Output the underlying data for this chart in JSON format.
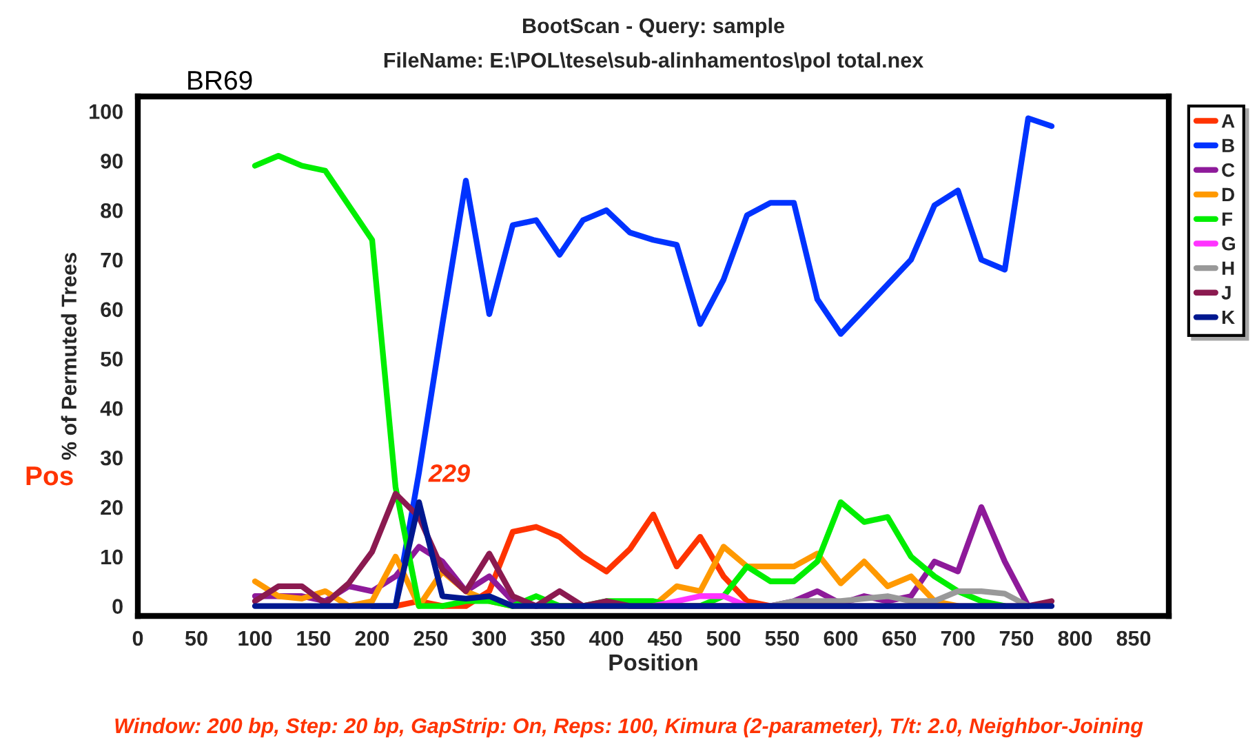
{
  "chart_data": {
    "type": "line",
    "title": "BootScan - Query: sample",
    "subtitle": "FileName: E:\\POL\\tese\\sub-alinhamentos\\pol total.nex",
    "xlabel": "Position",
    "ylabel": "% of Permuted Trees",
    "x": [
      100,
      120,
      140,
      160,
      180,
      200,
      220,
      240,
      260,
      280,
      300,
      320,
      340,
      360,
      380,
      400,
      420,
      440,
      460,
      480,
      500,
      520,
      540,
      560,
      580,
      600,
      620,
      640,
      660,
      680,
      700,
      720,
      740,
      760,
      780
    ],
    "series": [
      {
        "name": "A",
        "color": "#ff3300",
        "values": [
          null,
          null,
          null,
          null,
          null,
          null,
          0,
          1,
          0,
          0,
          3,
          15,
          16,
          14,
          10,
          7,
          11.5,
          18.5,
          8,
          14,
          6,
          1,
          0,
          null,
          null,
          null,
          null,
          null,
          null,
          null,
          null,
          null,
          null,
          null,
          null
        ]
      },
      {
        "name": "B",
        "color": "#0033ff",
        "values": [
          null,
          null,
          null,
          null,
          null,
          0,
          0,
          27,
          57,
          86,
          59,
          77,
          78,
          71,
          78,
          80,
          75.5,
          74,
          73,
          57,
          66,
          79,
          81.5,
          81.5,
          62,
          55,
          60,
          65,
          70,
          81,
          84,
          70,
          68,
          98.6,
          97
        ]
      },
      {
        "name": "C",
        "color": "#8e1a9a",
        "values": [
          2,
          2,
          2,
          1,
          4,
          3,
          6,
          12,
          9,
          3,
          6,
          1,
          0,
          null,
          null,
          null,
          null,
          null,
          null,
          null,
          null,
          null,
          0,
          1,
          3,
          0.5,
          2,
          1,
          2,
          9,
          7,
          20,
          9,
          0,
          null
        ]
      },
      {
        "name": "D",
        "color": "#ff9900",
        "values": [
          5,
          2,
          1.5,
          3,
          0,
          1,
          10,
          0,
          7,
          3,
          1,
          0,
          null,
          null,
          null,
          null,
          null,
          0,
          4,
          3,
          12,
          8,
          8,
          8,
          10.6,
          4.6,
          9,
          4,
          6,
          1,
          0,
          null,
          null,
          null,
          null
        ]
      },
      {
        "name": "F",
        "color": "#00ee00",
        "values": [
          89,
          91,
          89,
          88,
          81,
          74,
          24,
          0,
          0,
          1,
          1,
          0,
          2,
          0,
          0,
          1,
          1,
          1,
          0,
          0,
          2,
          8,
          5,
          5,
          9,
          21,
          17,
          18,
          10,
          6,
          3,
          1,
          0,
          null,
          null
        ]
      },
      {
        "name": "G",
        "color": "#ff33ff",
        "values": [
          null,
          null,
          null,
          null,
          null,
          null,
          null,
          null,
          null,
          null,
          null,
          null,
          null,
          null,
          null,
          null,
          null,
          0,
          1,
          2,
          2,
          0,
          null,
          null,
          null,
          null,
          null,
          null,
          null,
          null,
          null,
          null,
          null,
          null,
          null
        ]
      },
      {
        "name": "H",
        "color": "#999999",
        "values": [
          null,
          null,
          null,
          null,
          null,
          null,
          null,
          null,
          null,
          null,
          null,
          null,
          null,
          null,
          null,
          null,
          null,
          null,
          null,
          null,
          null,
          null,
          0,
          1,
          1,
          1,
          1.5,
          2,
          1,
          1,
          3,
          3,
          2.5,
          0,
          null
        ]
      },
      {
        "name": "J",
        "color": "#8b1a50",
        "values": [
          1,
          4,
          4,
          0.5,
          4.6,
          11,
          22.7,
          18,
          7.4,
          3,
          10.6,
          2,
          0,
          3,
          0,
          1,
          0,
          null,
          null,
          null,
          null,
          null,
          null,
          null,
          null,
          null,
          null,
          null,
          null,
          null,
          null,
          null,
          null,
          0,
          1
        ]
      },
      {
        "name": "K",
        "color": "#00188f",
        "values": [
          0,
          0,
          0,
          0,
          0,
          0,
          0,
          21,
          2,
          1.5,
          2,
          0,
          0,
          0,
          0,
          0,
          0,
          0,
          0,
          0,
          0,
          0,
          0,
          0,
          0,
          0,
          0,
          0,
          0,
          0,
          0,
          0,
          0,
          0,
          0
        ]
      }
    ],
    "xlim": [
      0,
      880
    ],
    "xticks": [
      0,
      50,
      100,
      150,
      200,
      250,
      300,
      350,
      400,
      450,
      500,
      550,
      600,
      650,
      700,
      750,
      800,
      850
    ],
    "ylim": [
      -2,
      103
    ],
    "yticks": [
      0,
      10,
      20,
      30,
      40,
      50,
      60,
      70,
      80,
      90,
      100
    ],
    "annotations": [
      "BR69",
      "Pos",
      "229",
      "Window: 200 bp, Step: 20 bp, GapStrip: On, Reps: 100, Kimura (2-parameter), T/t: 2.0, Neighbor-Joining"
    ],
    "legend": "right",
    "grid": false,
    "marker": "none",
    "line_style": "solid"
  }
}
